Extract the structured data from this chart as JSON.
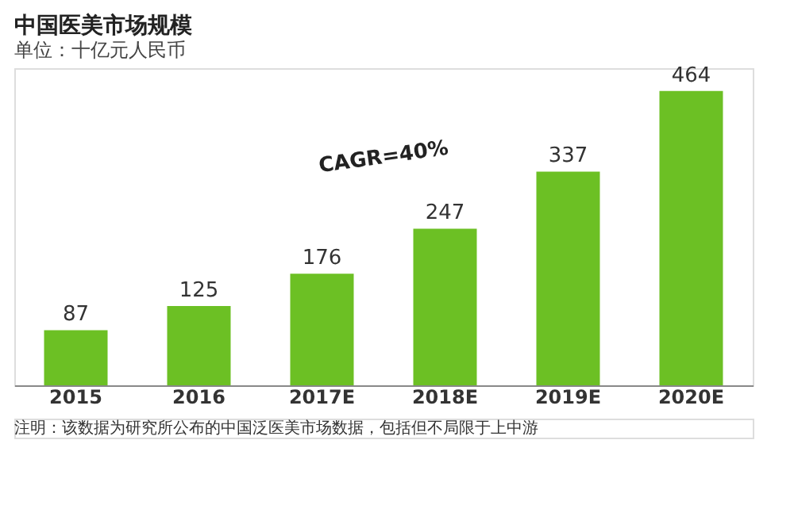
{
  "chart_data": {
    "type": "bar",
    "title": "中国医美市场规模",
    "subtitle": "单位：十亿元人民币",
    "categories": [
      "2015",
      "2016",
      "2017E",
      "2018E",
      "2019E",
      "2020E"
    ],
    "values": [
      87,
      125,
      176,
      247,
      337,
      464
    ],
    "color": "#6cc024",
    "data_labels": true,
    "tick_labels": "x",
    "grid": false,
    "annotations": [
      "CAGR=40%",
      "注明：该数据为研究所公布的中国泛医美市场数据，包括但不局限于上中游"
    ]
  }
}
